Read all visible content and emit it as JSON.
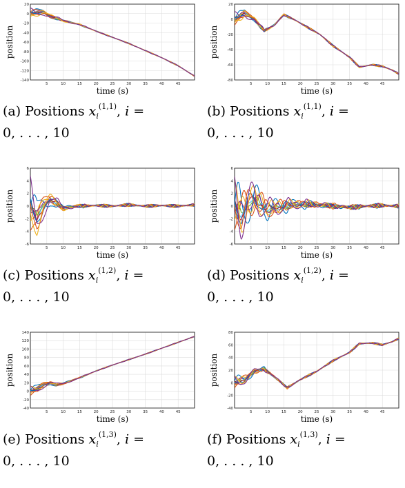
{
  "colors": [
    "#0072bd",
    "#d95319",
    "#edb120",
    "#7e2f8e",
    "#77ac30",
    "#4dbeee",
    "#a2142f"
  ],
  "chart_data": [
    {
      "type": "line",
      "id": "a",
      "xlabel": "time (s)",
      "ylabel": "position",
      "xlim": [
        0,
        50
      ],
      "ylim": [
        -140,
        20
      ],
      "xticks": [
        5,
        10,
        15,
        20,
        25,
        30,
        35,
        40,
        45
      ],
      "yticks": [
        20,
        0,
        -20,
        -40,
        -60,
        -80,
        -100,
        -120,
        -140
      ],
      "grid": true,
      "anchor_x": [
        0,
        2,
        4,
        6,
        8,
        10,
        15,
        20,
        25,
        30,
        35,
        40,
        45,
        50
      ],
      "anchor_y": [
        0,
        2,
        3,
        -5,
        -10,
        -15,
        -23,
        -37,
        -50,
        -63,
        -78,
        -93,
        -110,
        -132
      ],
      "amp": 12,
      "spread": 1.0,
      "decay": 6,
      "wiggle": 0.8,
      "caption": {
        "prefix": "(a) Positions",
        "var": "x",
        "sup": "(1,1)",
        "sub": "i",
        "mid": ", ",
        "idx": "i",
        "eq": " =",
        "line2": "0, . . . , 10"
      }
    },
    {
      "type": "line",
      "id": "b",
      "xlabel": "time (s)",
      "ylabel": "position",
      "xlim": [
        0,
        50
      ],
      "ylim": [
        -80,
        20
      ],
      "xticks": [
        5,
        10,
        15,
        20,
        25,
        30,
        35,
        40,
        45
      ],
      "yticks": [
        20,
        0,
        -20,
        -40,
        -60,
        -80
      ],
      "grid": true,
      "anchor_x": [
        0,
        3,
        6,
        9,
        12,
        15,
        18,
        22,
        26,
        30,
        35,
        38,
        42,
        45,
        48,
        50
      ],
      "anchor_y": [
        0,
        8,
        0,
        -15,
        -8,
        6,
        0,
        -10,
        -20,
        -35,
        -50,
        -63,
        -60,
        -62,
        -67,
        -72
      ],
      "amp": 10,
      "spread": 1.0,
      "decay": 5,
      "wiggle": 1.2,
      "caption": {
        "prefix": "(b) Positions",
        "var": "x",
        "sup": "(1,1)",
        "sub": "i",
        "mid": ", ",
        "idx": "i",
        "eq": " =",
        "line2": "0, . . . , 10"
      }
    },
    {
      "type": "line",
      "id": "c",
      "xlabel": "time (s)",
      "ylabel": "position",
      "xlim": [
        0,
        50
      ],
      "ylim": [
        -6,
        6
      ],
      "xticks": [
        5,
        10,
        15,
        20,
        25,
        30,
        35,
        40,
        45
      ],
      "yticks": [
        6,
        4,
        2,
        0,
        -2,
        -4,
        -6
      ],
      "grid": true,
      "anchor_x": [
        0,
        2,
        4,
        6,
        8,
        10,
        15,
        20,
        25,
        30,
        35,
        40,
        45,
        50
      ],
      "anchor_y": [
        0,
        -2,
        0,
        1,
        0.5,
        -0.3,
        0,
        0.1,
        0,
        0.2,
        0,
        0.1,
        0,
        0.2
      ],
      "amp": 5,
      "spread": 1.0,
      "decay": 4,
      "wiggle": 0.25,
      "caption": {
        "prefix": "(c) Positions",
        "var": "x",
        "sup": "(1,2)",
        "sub": "i",
        "mid": ", ",
        "idx": "i",
        "eq": " =",
        "line2": "0, . . . , 10"
      }
    },
    {
      "type": "line",
      "id": "d",
      "xlabel": "time (s)",
      "ylabel": "position",
      "xlim": [
        0,
        50
      ],
      "ylim": [
        -6,
        6
      ],
      "xticks": [
        5,
        10,
        15,
        20,
        25,
        30,
        35,
        40,
        45
      ],
      "yticks": [
        6,
        4,
        2,
        0,
        -2,
        -4,
        -6
      ],
      "grid": true,
      "anchor_x": [
        0,
        2,
        4,
        6,
        8,
        10,
        15,
        20,
        25,
        30,
        35,
        40,
        45,
        50
      ],
      "anchor_y": [
        0,
        -1.5,
        0.5,
        1,
        0.3,
        -0.5,
        0,
        0.3,
        0.2,
        0,
        -0.2,
        0,
        0.1,
        0
      ],
      "amp": 5,
      "spread": 1.6,
      "decay": 10,
      "wiggle": 0.35,
      "caption": {
        "prefix": "(d) Positions",
        "var": "x",
        "sup": "(1,2)",
        "sub": "i",
        "mid": ", ",
        "idx": "i",
        "eq": " =",
        "line2": "0, . . . , 10"
      }
    },
    {
      "type": "line",
      "id": "e",
      "xlabel": "time (s)",
      "ylabel": "position",
      "xlim": [
        0,
        50
      ],
      "ylim": [
        -40,
        140
      ],
      "xticks": [
        5,
        10,
        15,
        20,
        25,
        30,
        35,
        40,
        45
      ],
      "yticks": [
        140,
        120,
        100,
        80,
        60,
        40,
        20,
        0,
        -20,
        -40
      ],
      "grid": true,
      "anchor_x": [
        0,
        2,
        4,
        6,
        8,
        10,
        15,
        20,
        25,
        30,
        35,
        40,
        45,
        50
      ],
      "anchor_y": [
        0,
        5,
        15,
        20,
        15,
        18,
        32,
        48,
        62,
        75,
        88,
        102,
        116,
        130
      ],
      "amp": 14,
      "spread": 1.0,
      "decay": 6,
      "wiggle": 0.8,
      "caption": {
        "prefix": "(e) Positions",
        "var": "x",
        "sup": "(1,3)",
        "sub": "i",
        "mid": ", ",
        "idx": "i",
        "eq": " =",
        "line2": "0, . . . , 10"
      }
    },
    {
      "type": "line",
      "id": "f",
      "xlabel": "time (s)",
      "ylabel": "position",
      "xlim": [
        0,
        50
      ],
      "ylim": [
        -40,
        80
      ],
      "xticks": [
        5,
        10,
        15,
        20,
        25,
        30,
        35,
        40,
        45
      ],
      "yticks": [
        80,
        60,
        40,
        20,
        0,
        -20,
        -40
      ],
      "grid": true,
      "anchor_x": [
        0,
        3,
        6,
        9,
        12,
        16,
        20,
        25,
        30,
        35,
        38,
        42,
        45,
        48,
        50
      ],
      "anchor_y": [
        0,
        5,
        18,
        22,
        10,
        -8,
        5,
        18,
        35,
        48,
        62,
        63,
        60,
        65,
        70
      ],
      "amp": 12,
      "spread": 1.3,
      "decay": 6,
      "wiggle": 1.5,
      "caption": {
        "prefix": "(f) Positions",
        "var": "x",
        "sup": "(1,3)",
        "sub": "i",
        "mid": ", ",
        "idx": "i",
        "eq": " =",
        "line2": "0, . . . , 10"
      }
    }
  ]
}
